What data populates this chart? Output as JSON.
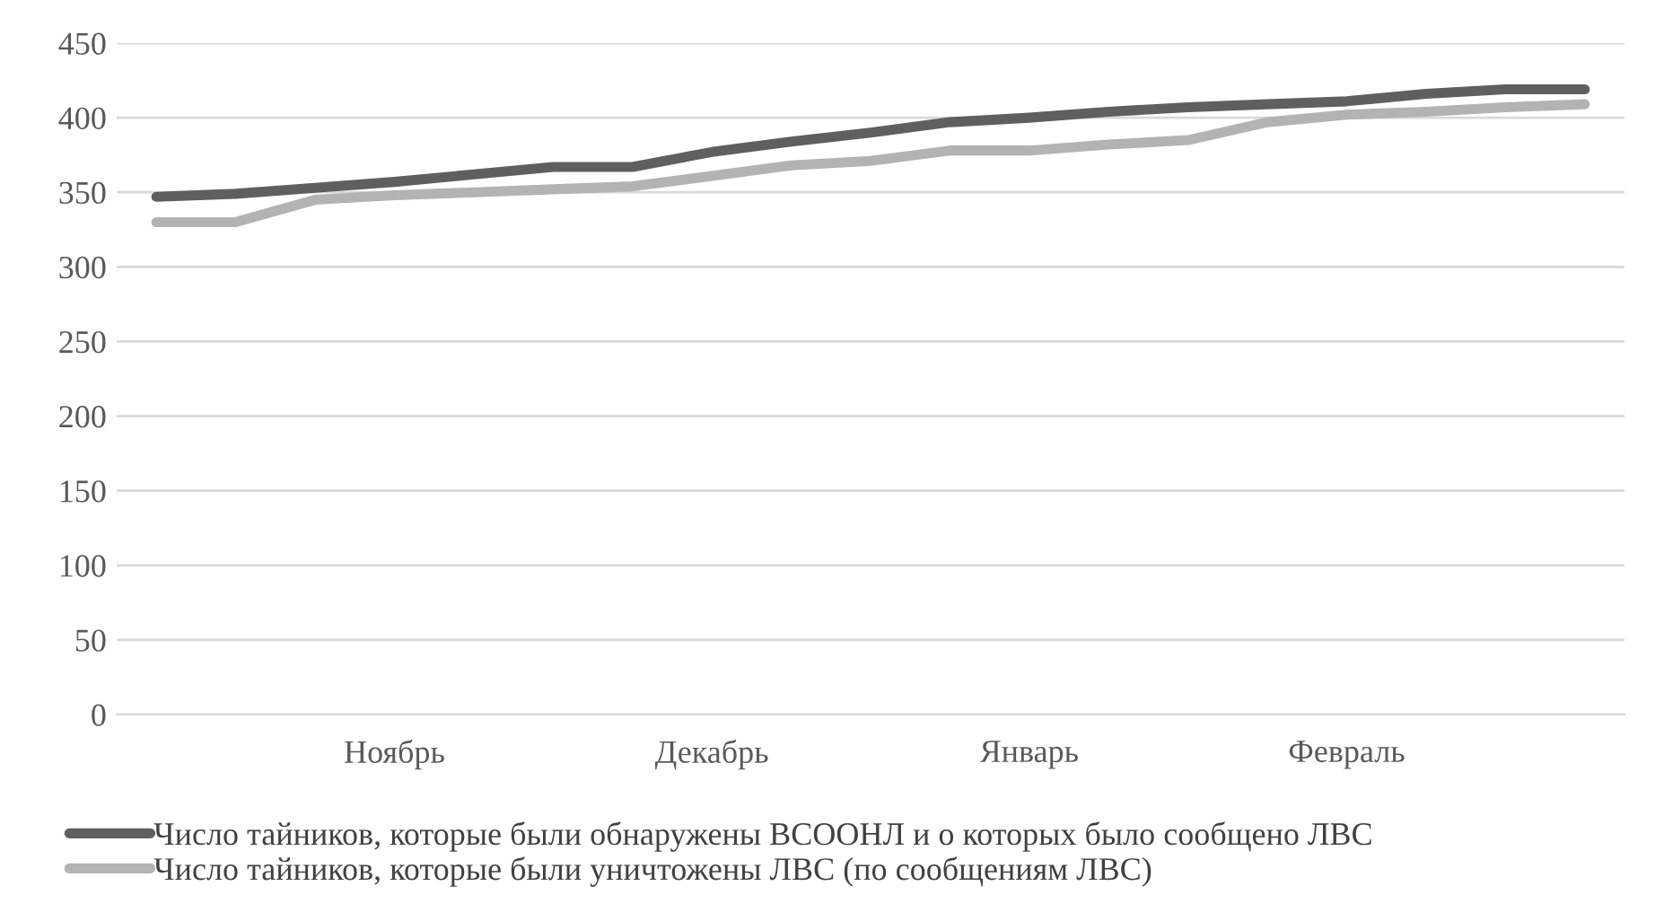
{
  "chart_data": {
    "type": "line",
    "categories": [
      null,
      null,
      null,
      "Ноябрь",
      null,
      null,
      null,
      "Декабрь",
      null,
      null,
      null,
      "Январь",
      null,
      null,
      null,
      "Февраль",
      null,
      null,
      null
    ],
    "series": [
      {
        "name": "Число тайников, которые были обнаружены ВСООНЛ и о которых было сообщено ЛВС",
        "color": "#5f5f5f",
        "values": [
          347,
          349,
          353,
          357,
          362,
          367,
          367,
          377,
          384,
          390,
          397,
          400,
          404,
          407,
          409,
          411,
          416,
          419,
          419
        ]
      },
      {
        "name": "Число тайников, которые были уничтожены ЛВС (по сообщениям ЛВС)",
        "color": "#b3b3b3",
        "values": [
          330,
          330,
          345,
          348,
          350,
          352,
          354,
          361,
          368,
          371,
          378,
          378,
          382,
          385,
          397,
          402,
          404,
          407,
          409
        ]
      }
    ],
    "ylim": [
      0,
      450
    ],
    "yticks": [
      0,
      50,
      100,
      150,
      200,
      250,
      300,
      350,
      400,
      450
    ],
    "grid": "y",
    "legend": "bottom",
    "marker": "none",
    "line_style": "solid"
  }
}
